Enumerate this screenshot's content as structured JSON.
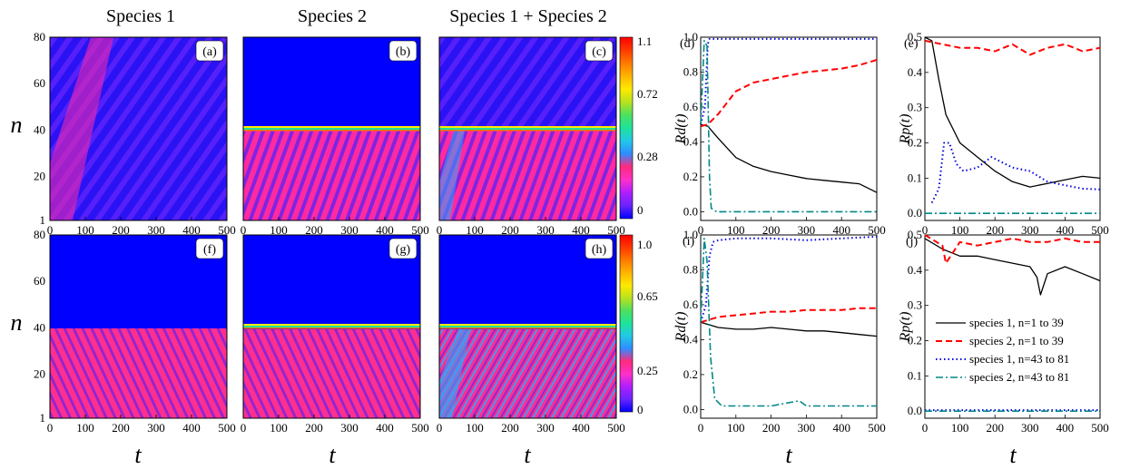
{
  "titles": [
    "Species 1",
    "Species 2",
    "Species 1 + Species 2"
  ],
  "heat": {
    "xticks": [
      0,
      100,
      200,
      300,
      400,
      500
    ],
    "yticks": [
      1,
      20,
      40,
      60,
      80
    ],
    "xlabel": "t",
    "ylabel": "n",
    "cbar_top": [
      "1.1",
      "0.72",
      "0.28",
      "0"
    ],
    "cbar_bottom": [
      "1.0",
      "0.65",
      "0.25",
      "0"
    ],
    "cbar_colors": [
      "#0000ff",
      "#6a24ff",
      "#b01eff",
      "#ff30c8",
      "#ff2a7d",
      "#2f8cff",
      "#22c8e6",
      "#1de39a",
      "#4ce060",
      "#b8e21e",
      "#ffea00",
      "#ffb400",
      "#ff7a00",
      "#ff3a00",
      "#ff0000"
    ]
  },
  "line_axes": {
    "xticks": [
      0,
      100,
      200,
      300,
      400,
      500
    ],
    "xlabel": "t",
    "rd_label": "Rd(t)",
    "rp_label": "Rp(t)"
  },
  "legend": [
    "species 1, n=1 to 39",
    "species 2, n=1 to 39",
    "species 1, n=43 to 81",
    "species 2, n=43 to 81"
  ],
  "colors": {
    "s1_low": "#000000",
    "s2_low": "#ff0000",
    "s1_high": "#0000dd",
    "s2_high": "#008888"
  },
  "chart_data": [
    {
      "type": "heatmap",
      "panel": "(a)",
      "title": "Species 1",
      "xlim": [
        0,
        500
      ],
      "ylim": [
        1,
        80
      ]
    },
    {
      "type": "heatmap",
      "panel": "(b)",
      "title": "Species 2",
      "xlim": [
        0,
        500
      ],
      "ylim": [
        1,
        80
      ]
    },
    {
      "type": "heatmap",
      "panel": "(c)",
      "title": "Species 1 + Species 2",
      "xlim": [
        0,
        500
      ],
      "ylim": [
        1,
        80
      ],
      "colorbar_ticks": [
        1.1,
        0.72,
        0.28,
        0
      ]
    },
    {
      "type": "heatmap",
      "panel": "(f)",
      "xlim": [
        0,
        500
      ],
      "ylim": [
        1,
        80
      ]
    },
    {
      "type": "heatmap",
      "panel": "(g)",
      "xlim": [
        0,
        500
      ],
      "ylim": [
        1,
        80
      ]
    },
    {
      "type": "heatmap",
      "panel": "(h)",
      "xlim": [
        0,
        500
      ],
      "ylim": [
        1,
        80
      ],
      "colorbar_ticks": [
        1.0,
        0.65,
        0.25,
        0
      ]
    },
    {
      "type": "line",
      "panel": "(d)",
      "ylabel": "Rd(t)",
      "xlabel": "t",
      "xlim": [
        0,
        500
      ],
      "ylim": [
        -0.05,
        1.0
      ],
      "yticks": [
        0.0,
        0.2,
        0.4,
        0.6,
        0.8,
        1.0
      ],
      "series": [
        {
          "x": [
            0,
            20,
            50,
            100,
            150,
            200,
            250,
            300,
            350,
            400,
            450,
            500
          ],
          "y": [
            0.5,
            0.49,
            0.42,
            0.31,
            0.26,
            0.23,
            0.21,
            0.19,
            0.18,
            0.17,
            0.16,
            0.11
          ]
        },
        {
          "x": [
            0,
            20,
            50,
            100,
            150,
            200,
            250,
            300,
            350,
            400,
            450,
            500
          ],
          "y": [
            0.49,
            0.5,
            0.56,
            0.69,
            0.74,
            0.76,
            0.78,
            0.8,
            0.81,
            0.82,
            0.84,
            0.87
          ]
        },
        {
          "x": [
            0,
            12,
            20,
            25,
            40,
            100,
            200,
            300,
            400,
            500
          ],
          "y": [
            0.5,
            0.6,
            0.96,
            0.99,
            0.99,
            0.99,
            0.99,
            0.99,
            0.99,
            0.99
          ]
        },
        {
          "x": [
            0,
            10,
            18,
            25,
            30,
            45,
            100,
            200,
            300,
            400,
            500
          ],
          "y": [
            0.5,
            0.98,
            0.95,
            0.2,
            0.02,
            0.0,
            0.0,
            0.0,
            0.0,
            0.0,
            0.0
          ]
        }
      ]
    },
    {
      "type": "line",
      "panel": "(e)",
      "ylabel": "Rp(t)",
      "xlabel": "t",
      "xlim": [
        0,
        500
      ],
      "ylim": [
        -0.02,
        0.5
      ],
      "yticks": [
        0.0,
        0.1,
        0.2,
        0.3,
        0.4,
        0.5
      ],
      "series": [
        {
          "x": [
            0,
            20,
            40,
            60,
            100,
            150,
            200,
            250,
            300,
            350,
            400,
            450,
            500
          ],
          "y": [
            0.5,
            0.49,
            0.38,
            0.28,
            0.2,
            0.16,
            0.12,
            0.09,
            0.075,
            0.085,
            0.095,
            0.105,
            0.1
          ]
        },
        {
          "x": [
            0,
            50,
            100,
            150,
            200,
            250,
            300,
            350,
            400,
            450,
            500
          ],
          "y": [
            0.49,
            0.48,
            0.47,
            0.47,
            0.46,
            0.48,
            0.45,
            0.47,
            0.48,
            0.46,
            0.47
          ]
        },
        {
          "x": [
            20,
            40,
            55,
            70,
            90,
            110,
            150,
            190,
            210,
            250,
            300,
            350,
            400,
            450,
            500
          ],
          "y": [
            0.03,
            0.07,
            0.2,
            0.2,
            0.14,
            0.12,
            0.13,
            0.16,
            0.15,
            0.13,
            0.12,
            0.09,
            0.08,
            0.07,
            0.068
          ]
        },
        {
          "x": [
            0,
            500
          ],
          "y": [
            0.0,
            0.0
          ]
        }
      ]
    },
    {
      "type": "line",
      "panel": "(i)",
      "ylabel": "Rd(t)",
      "xlabel": "t",
      "xlim": [
        0,
        500
      ],
      "ylim": [
        -0.05,
        1.0
      ],
      "yticks": [
        0.0,
        0.2,
        0.4,
        0.6,
        0.8,
        1.0
      ],
      "series": [
        {
          "x": [
            0,
            50,
            100,
            150,
            200,
            250,
            300,
            350,
            400,
            450,
            500
          ],
          "y": [
            0.5,
            0.47,
            0.46,
            0.46,
            0.47,
            0.46,
            0.45,
            0.45,
            0.44,
            0.43,
            0.42
          ]
        },
        {
          "x": [
            0,
            50,
            100,
            150,
            200,
            250,
            300,
            350,
            400,
            450,
            500
          ],
          "y": [
            0.5,
            0.53,
            0.54,
            0.55,
            0.56,
            0.56,
            0.57,
            0.57,
            0.57,
            0.58,
            0.58
          ]
        },
        {
          "x": [
            0,
            15,
            25,
            35,
            50,
            100,
            200,
            300,
            400,
            500
          ],
          "y": [
            0.5,
            0.6,
            0.88,
            0.96,
            0.97,
            0.98,
            0.98,
            0.97,
            0.98,
            0.99
          ]
        },
        {
          "x": [
            0,
            10,
            18,
            28,
            40,
            60,
            100,
            200,
            280,
            300,
            400,
            500
          ],
          "y": [
            0.5,
            0.98,
            0.85,
            0.3,
            0.06,
            0.02,
            0.02,
            0.02,
            0.05,
            0.02,
            0.02,
            0.02
          ]
        }
      ]
    },
    {
      "type": "line",
      "panel": "(j)",
      "ylabel": "Rp(t)",
      "xlabel": "t",
      "xlim": [
        0,
        500
      ],
      "ylim": [
        -0.02,
        0.5
      ],
      "yticks": [
        0.0,
        0.1,
        0.2,
        0.3,
        0.4,
        0.5
      ],
      "series": [
        {
          "name": "species 1, n=1 to 39",
          "x": [
            0,
            50,
            100,
            150,
            200,
            250,
            300,
            320,
            330,
            350,
            400,
            450,
            500
          ],
          "y": [
            0.49,
            0.46,
            0.44,
            0.44,
            0.43,
            0.42,
            0.41,
            0.38,
            0.33,
            0.39,
            0.41,
            0.39,
            0.37
          ]
        },
        {
          "name": "species 2, n=1 to 39",
          "x": [
            0,
            50,
            60,
            100,
            150,
            200,
            250,
            300,
            350,
            400,
            450,
            500
          ],
          "y": [
            0.5,
            0.47,
            0.42,
            0.48,
            0.47,
            0.48,
            0.49,
            0.48,
            0.48,
            0.49,
            0.48,
            0.48
          ]
        },
        {
          "name": "species 1, n=43 to 81",
          "x": [
            0,
            500
          ],
          "y": [
            0.003,
            0.003
          ]
        },
        {
          "name": "species 2, n=43 to 81",
          "x": [
            0,
            500
          ],
          "y": [
            0.0,
            0.0
          ]
        }
      ]
    }
  ]
}
